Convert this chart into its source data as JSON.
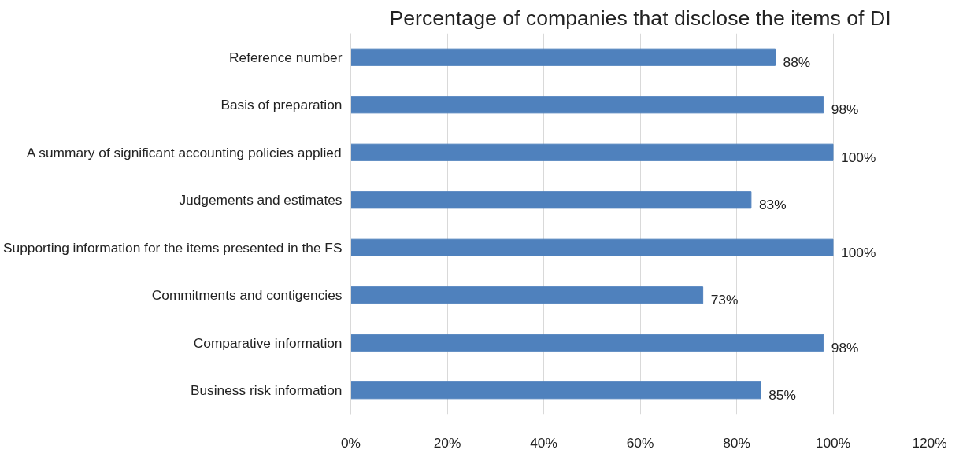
{
  "chart_data": {
    "type": "bar",
    "orientation": "horizontal",
    "title": "Percentage of companies that disclose the items of DI",
    "categories": [
      "Reference number",
      "Basis of preparation",
      "A summary of significant accounting policies applied",
      "Judgements and estimates",
      "Supporting information for the items presented in the FS",
      "Commitments and contigencies",
      "Comparative information",
      "Business risk information"
    ],
    "values": [
      88,
      98,
      100,
      83,
      100,
      73,
      98,
      85
    ],
    "value_labels": [
      "88%",
      "98%",
      "100%",
      "83%",
      "100%",
      "73%",
      "98%",
      "85%"
    ],
    "color": "#4f81bd",
    "xlim": [
      0,
      120
    ],
    "xticks": [
      {
        "value": 0,
        "label": "0%"
      },
      {
        "value": 20,
        "label": "20%"
      },
      {
        "value": 40,
        "label": "40%"
      },
      {
        "value": 60,
        "label": "60%"
      },
      {
        "value": 80,
        "label": "80%"
      },
      {
        "value": 100,
        "label": "100%"
      },
      {
        "value": 120,
        "label": "120%"
      }
    ],
    "grid": "x"
  }
}
